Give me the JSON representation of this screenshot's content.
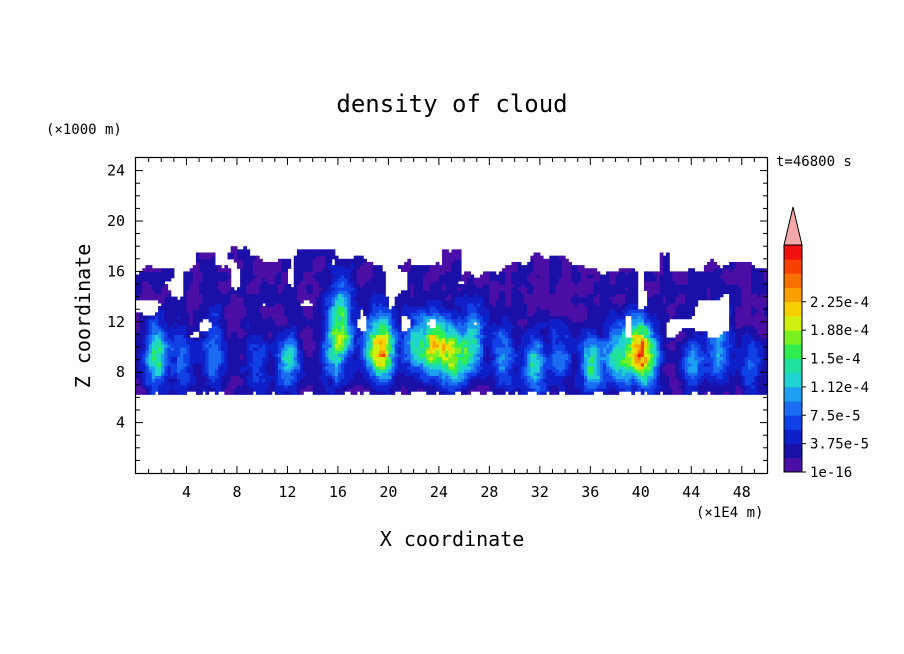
{
  "chart_data": {
    "type": "heatmap",
    "title": "density of cloud",
    "xlabel": "X coordinate",
    "ylabel": "Z coordinate",
    "x_unit": "(×1E4 m)",
    "y_unit": "(×1000 m)",
    "time_label": "t=46800 s",
    "xlim": [
      0,
      50
    ],
    "ylim": [
      0,
      25
    ],
    "x_ticks": [
      "4",
      "8",
      "12",
      "16",
      "20",
      "24",
      "28",
      "32",
      "36",
      "40",
      "44",
      "48"
    ],
    "y_ticks": [
      "4",
      "8",
      "12",
      "16",
      "20",
      "24"
    ],
    "colorbar": {
      "tick_labels": [
        "1e-16",
        "3.75e-5",
        "7.5e-5",
        "1.12e-4",
        "1.5e-4",
        "1.88e-4",
        "2.25e-4"
      ],
      "colors": [
        "#4b0fa6",
        "#1a10a8",
        "#1020c8",
        "#1040e6",
        "#1a6cf0",
        "#1ea0f0",
        "#20d2d2",
        "#20e0a0",
        "#30ee50",
        "#7af020",
        "#d2f010",
        "#f8d000",
        "#f8a000",
        "#f87000",
        "#f84000",
        "#f01010"
      ],
      "overflow_color": "#f4a8a8"
    },
    "field": {
      "cloud_base_z": 6,
      "cloud_top_z": 16,
      "anvil_top_z": 18.5,
      "cores": [
        {
          "x": 1.5,
          "peak_z": 9,
          "top_z": 12,
          "level": 0.00011
        },
        {
          "x": 3.5,
          "peak_z": 8.5,
          "top_z": 13,
          "level": 5e-05
        },
        {
          "x": 6.0,
          "peak_z": 9,
          "top_z": 14,
          "level": 6e-05
        },
        {
          "x": 9.5,
          "peak_z": 8.5,
          "top_z": 12,
          "level": 4e-05
        },
        {
          "x": 12.0,
          "peak_z": 9,
          "top_z": 11,
          "level": 9e-05
        },
        {
          "x": 15.5,
          "peak_z": 9,
          "top_z": 15,
          "level": 6e-05
        },
        {
          "x": 16.2,
          "peak_z": 11,
          "top_z": 16,
          "level": 0.0001
        },
        {
          "x": 18.5,
          "peak_z": 10,
          "top_z": 13,
          "level": 7e-05
        },
        {
          "x": 19.5,
          "peak_z": 9.5,
          "top_z": 13,
          "level": 0.00014
        },
        {
          "x": 22.0,
          "peak_z": 10,
          "top_z": 13,
          "level": 8e-05
        },
        {
          "x": 23.5,
          "peak_z": 10,
          "top_z": 13,
          "level": 0.00015
        },
        {
          "x": 25.0,
          "peak_z": 9,
          "top_z": 12,
          "level": 0.00013
        },
        {
          "x": 26.5,
          "peak_z": 10,
          "top_z": 14,
          "level": 9e-05
        },
        {
          "x": 29.0,
          "peak_z": 9,
          "top_z": 13,
          "level": 6e-05
        },
        {
          "x": 31.5,
          "peak_z": 8.5,
          "top_z": 11,
          "level": 9e-05
        },
        {
          "x": 33.5,
          "peak_z": 9,
          "top_z": 12,
          "level": 5e-05
        },
        {
          "x": 36.0,
          "peak_z": 8.5,
          "top_z": 11,
          "level": 0.0001
        },
        {
          "x": 38.0,
          "peak_z": 9,
          "top_z": 12,
          "level": 9e-05
        },
        {
          "x": 39.5,
          "peak_z": 9.5,
          "top_z": 13,
          "level": 0.00014
        },
        {
          "x": 40.5,
          "peak_z": 9,
          "top_z": 12,
          "level": 0.0001
        },
        {
          "x": 44.0,
          "peak_z": 8.5,
          "top_z": 11,
          "level": 6e-05
        },
        {
          "x": 46.0,
          "peak_z": 9,
          "top_z": 14,
          "level": 7e-05
        },
        {
          "x": 48.5,
          "peak_z": 8.5,
          "top_z": 11,
          "level": 5e-05
        }
      ]
    }
  }
}
